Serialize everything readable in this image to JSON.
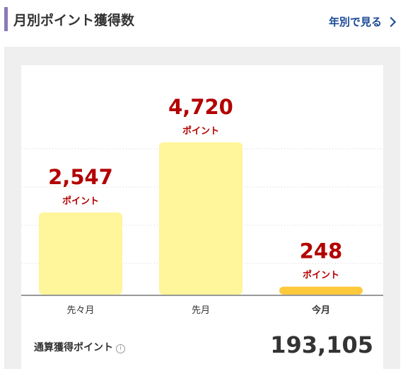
{
  "header": {
    "title": "月別ポイント獲得数",
    "yearly_link": "年別で見る"
  },
  "chart_data": {
    "type": "bar",
    "categories": [
      "先々月",
      "先月",
      "今月"
    ],
    "values": [
      2547,
      4720,
      248
    ],
    "value_labels": [
      "2,547",
      "4,720",
      "248"
    ],
    "unit_label": "ポイント",
    "highlight_category": "今月",
    "grid": true,
    "colors": {
      "bar": "#fff59a",
      "bar_current": "#ffc93c",
      "value_text": "#b30000",
      "axis": "#999999"
    }
  },
  "total": {
    "label": "通算獲得ポイント",
    "value": "193,105"
  }
}
